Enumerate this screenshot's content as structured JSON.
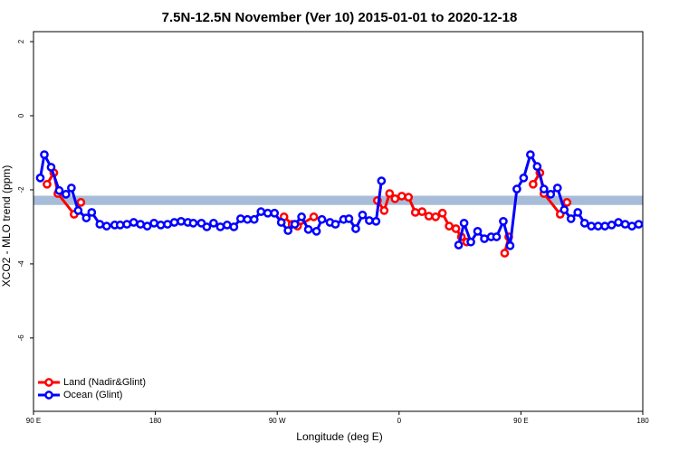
{
  "chart_data": {
    "type": "line",
    "title": "7.5N-12.5N November (Ver 10)   2015-01-01 to 2020-12-18",
    "x_label": "Longitude (deg E)",
    "y_label": "XCO2 - MLO trend (ppm)",
    "xlim": [
      90,
      540
    ],
    "xticks": [
      {
        "value": 90,
        "label": "90 E"
      },
      {
        "value": 180,
        "label": "180"
      },
      {
        "value": 270,
        "label": "90 W"
      },
      {
        "value": 360,
        "label": "0"
      },
      {
        "value": 450,
        "label": "90 E"
      },
      {
        "value": 540,
        "label": "180"
      }
    ],
    "ylim": [
      -7.98,
      2.27
    ],
    "yticks": [
      2,
      0,
      -2,
      -4,
      -6
    ],
    "band": [
      -2.41,
      -2.16
    ],
    "band_color": "#a7bcd9",
    "legend": "bottom-left",
    "series": [
      {
        "name": "Land (Nadir&Glint)",
        "color": "#ff0000",
        "x": [
          100,
          105,
          108,
          120,
          125,
          null,
          275,
          281,
          285,
          297,
          null,
          344,
          349,
          353,
          357,
          362,
          367,
          372,
          377,
          382,
          387,
          392,
          397,
          402,
          406,
          410,
          null,
          438,
          441,
          null,
          459,
          464,
          467,
          479,
          484
        ],
        "values": [
          -1.85,
          -1.54,
          -2.1,
          -2.66,
          -2.34,
          null,
          -2.73,
          -2.93,
          -2.98,
          -2.73,
          null,
          -2.29,
          -2.56,
          -2.1,
          -2.24,
          -2.17,
          -2.2,
          -2.61,
          -2.59,
          -2.71,
          -2.73,
          -2.63,
          -2.98,
          -3.05,
          -3.27,
          -3.41,
          null,
          -3.71,
          -3.27,
          null,
          -1.85,
          -1.54,
          -2.1,
          -2.66,
          -2.34
        ]
      },
      {
        "name": "Ocean (Glint)",
        "color": "#0000ff",
        "x": [
          95,
          98,
          103,
          109,
          114,
          118,
          123,
          129,
          133,
          139,
          144,
          150,
          154,
          159,
          164,
          169,
          174,
          179,
          184,
          189,
          194,
          199,
          204,
          208,
          214,
          218,
          223,
          228,
          233,
          238,
          243,
          248,
          253,
          258,
          263,
          268,
          273,
          278,
          283,
          288,
          293,
          299,
          303,
          309,
          313,
          319,
          323,
          328,
          333,
          338,
          343,
          347,
          null,
          404,
          408,
          413,
          418,
          423,
          428,
          432,
          437,
          442,
          447,
          452,
          457,
          462,
          467,
          472,
          477,
          482,
          487,
          492,
          497,
          502,
          507,
          512,
          517,
          522,
          527,
          532,
          537
        ],
        "values": [
          -1.68,
          -1.05,
          -1.39,
          -2.02,
          -2.12,
          -1.95,
          -2.56,
          -2.76,
          -2.61,
          -2.93,
          -2.98,
          -2.95,
          -2.95,
          -2.93,
          -2.88,
          -2.93,
          -2.98,
          -2.9,
          -2.95,
          -2.93,
          -2.88,
          -2.85,
          -2.88,
          -2.9,
          -2.9,
          -3.0,
          -2.9,
          -3.0,
          -2.95,
          -3.0,
          -2.78,
          -2.8,
          -2.8,
          -2.59,
          -2.63,
          -2.63,
          -2.88,
          -3.1,
          -2.93,
          -2.73,
          -3.07,
          -3.12,
          -2.8,
          -2.88,
          -2.93,
          -2.8,
          -2.78,
          -3.05,
          -2.68,
          -2.83,
          -2.85,
          -1.76,
          null,
          -3.49,
          -2.9,
          -3.41,
          -3.12,
          -3.32,
          -3.27,
          -3.27,
          -2.85,
          -3.51,
          -1.98,
          -1.68,
          -1.05,
          -1.37,
          -1.98,
          -2.12,
          -1.95,
          -2.54,
          -2.78,
          -2.61,
          -2.9,
          -2.98,
          -2.98,
          -2.98,
          -2.95,
          -2.88,
          -2.93,
          -2.98,
          -2.93
        ]
      }
    ]
  }
}
